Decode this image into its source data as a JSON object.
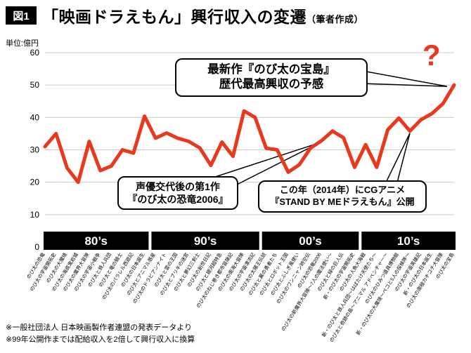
{
  "header": {
    "figure_label": "図1",
    "title": "「映画ドラえもん」興行収入の変遷",
    "title_suffix": "（筆者作成）"
  },
  "y_axis": {
    "unit_label": "単位:億円",
    "ticks": [
      0,
      10,
      20,
      30,
      40,
      50,
      60
    ]
  },
  "chart_data": {
    "type": "line",
    "title": "「映画ドラえもん」興行収入の変遷",
    "ylabel": "単位:億円",
    "ylim": [
      0,
      60
    ],
    "grid": true,
    "line_color": "#e8391d",
    "final_point_marker": "?",
    "categories": [
      "のび太の恐竜",
      "のび太の宇宙開拓史",
      "のび太の大魔境",
      "のび太の海底鬼岩城",
      "のび太の魔界大冒険",
      "のび太の宇宙小戦争",
      "のび太と鉄人兵団",
      "のび太と竜の騎士",
      "のび太のパラレル西遊記",
      "のび太の日本誕生",
      "のび太とアニマル惑星",
      "のび太のドラビアンナイト",
      "のび太と雲の王国",
      "のび太とブリキの迷宮",
      "のび太と夢幻三剣士",
      "のび太の創世日記",
      "のび太と銀河超特急",
      "のび太のねじ巻き都市冒険記",
      "のび太の南海大冒険",
      "のび太の宇宙漂流記",
      "のび太の太陽王伝説",
      "のび太と翼の勇者たち",
      "のび太とロボット王国",
      "のび太とふしぎ風使い",
      "のび太のワンニャン時空伝",
      "のび太の恐竜2006",
      "のび太の新魔界大冒険〜7人の魔法使い〜",
      "のび太と緑の巨人伝",
      "新・のび太の宇宙開拓史",
      "のび太の人魚大海戦",
      "新・のび太と鉄人兵団〜はばたけ天使たち〜",
      "のび太と奇跡の島〜アニマル アドベンチャー〜",
      "のび太のひみつ道具博物館",
      "新・のび太の大魔境〜ペコと5人の探検隊〜",
      "のび太の宇宙英雄記",
      "新・のび太の日本誕生",
      "のび太の南極カチコチ大冒険",
      "のび太の宝島"
    ],
    "values": [
      31,
      35,
      24.4,
      20,
      32.6,
      23.6,
      25,
      30,
      29,
      40.4,
      33.6,
      35.2,
      33.6,
      32.6,
      30.6,
      25.2,
      32.4,
      28,
      42,
      40,
      30.5,
      30,
      23.1,
      25.4,
      30.5,
      32.8,
      35.8,
      33.7,
      24.6,
      31.6,
      24.6,
      36.2,
      39.8,
      35.8,
      39.3,
      41.2,
      44.3,
      50
    ],
    "decade_bands": [
      {
        "label": "80’s",
        "count": 10
      },
      {
        "label": "90’s",
        "count": 10
      },
      {
        "label": "00’s",
        "count": 9
      },
      {
        "label": "10’s",
        "count": 9
      }
    ]
  },
  "annotations": {
    "latest": {
      "line1": "最新作『のび太の宝島』",
      "line2": "歴代最高興収の予感",
      "target_index": 37
    },
    "seiyu": {
      "line1": "声優交代後の第1作",
      "line2": "『のび太の恐竜2006』",
      "target_index": 25
    },
    "standbyme": {
      "line1": "この年（2014年）にCGアニメ",
      "line2": "『STAND BY MEドラえもん』公開",
      "target_index": 33
    }
  },
  "footer": {
    "note1": "※一般社団法人 日本映画製作者連盟の発表データより",
    "note2": "※99年公開作までは配給収入を2倍して興行収入に換算"
  }
}
